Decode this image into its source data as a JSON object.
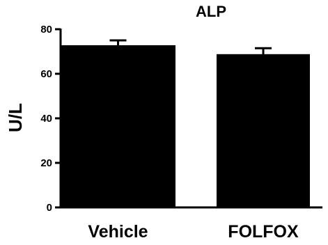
{
  "chart_data": {
    "type": "bar",
    "title": "ALP",
    "xlabel": "",
    "ylabel": "U/L",
    "categories": [
      "Vehicle",
      "FOLFOX"
    ],
    "values": [
      72.5,
      68.5
    ],
    "error_upper": [
      75.0,
      71.5
    ],
    "ylim": [
      0,
      80
    ],
    "yticks": [
      0,
      20,
      40,
      60,
      80
    ],
    "ytick_labels": [
      "0",
      "20",
      "40",
      "60",
      "80"
    ],
    "grid": false,
    "legend": "none",
    "bar_color": "#000000"
  }
}
